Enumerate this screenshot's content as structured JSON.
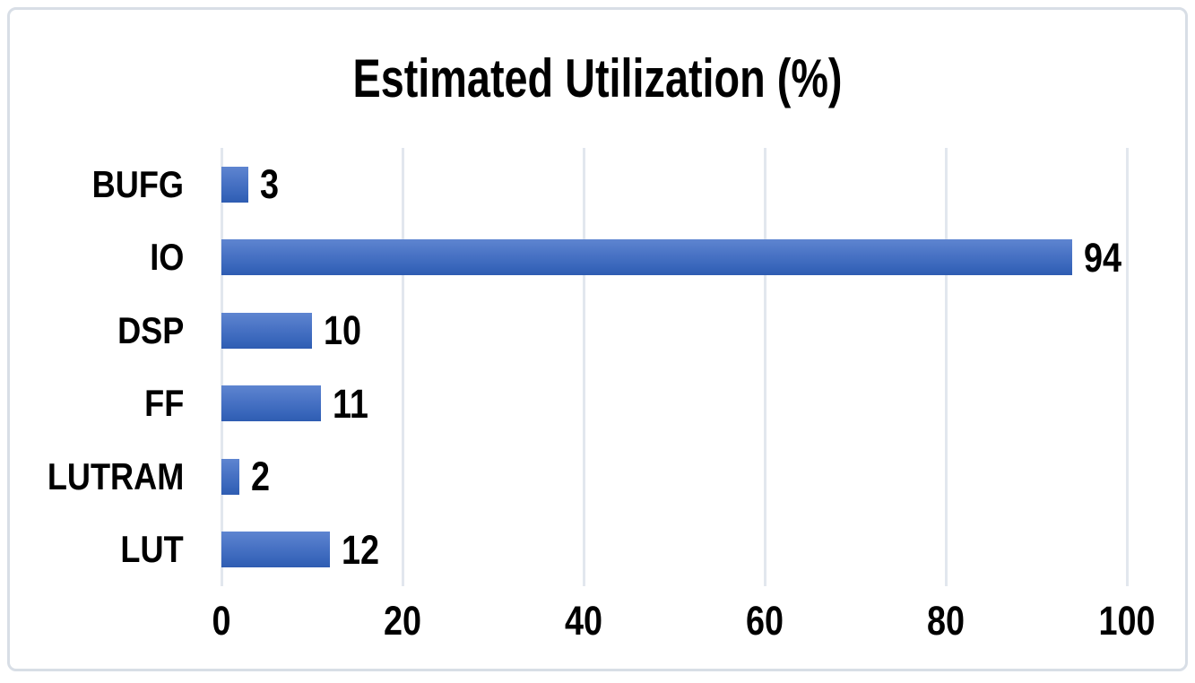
{
  "chart_data": {
    "type": "bar",
    "orientation": "horizontal",
    "title": "Estimated Utilization (%)",
    "categories": [
      "BUFG",
      "IO",
      "DSP",
      "FF",
      "LUTRAM",
      "LUT"
    ],
    "values": [
      3,
      94,
      10,
      11,
      2,
      12
    ],
    "data_labels": [
      "3",
      "94",
      "10",
      "11",
      "2",
      "12"
    ],
    "xlabel": "",
    "ylabel": "",
    "xlim": [
      0,
      100
    ],
    "x_ticks": [
      0,
      20,
      40,
      60,
      80,
      100
    ],
    "grid": "vertical-gridlines-on",
    "legend": "none",
    "colors": {
      "bar_gradient_top": "#5e85d0",
      "bar_gradient_bottom": "#2f5cb2",
      "gridline": "#e2e7ee",
      "frame_border": "#d8dee6",
      "text": "#000000",
      "background": "#ffffff"
    }
  }
}
